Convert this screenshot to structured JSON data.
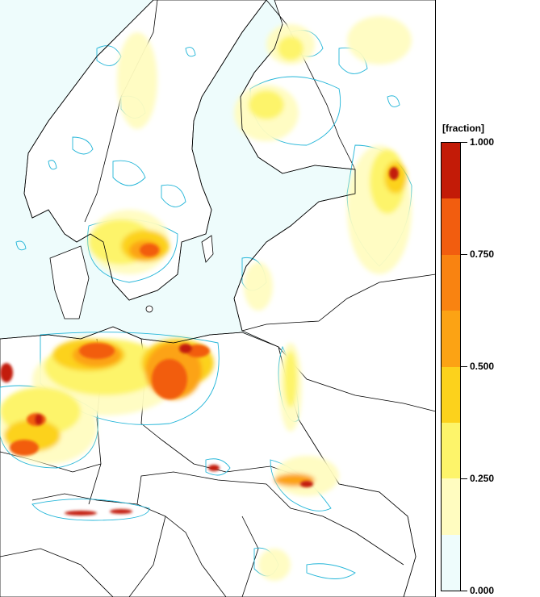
{
  "legend": {
    "title": "[fraction]",
    "ticks": [
      {
        "value": 1.0,
        "label": "1.000"
      },
      {
        "value": 0.75,
        "label": "0.750"
      },
      {
        "value": 0.5,
        "label": "0.500"
      },
      {
        "value": 0.25,
        "label": "0.250"
      },
      {
        "value": 0.0,
        "label": "0.000"
      }
    ],
    "bands": [
      {
        "from": 0.0,
        "to": 0.125,
        "color": "#eefcfc"
      },
      {
        "from": 0.125,
        "to": 0.25,
        "color": "#fffcc0"
      },
      {
        "from": 0.25,
        "to": 0.375,
        "color": "#fdf46a"
      },
      {
        "from": 0.375,
        "to": 0.5,
        "color": "#fcd21c"
      },
      {
        "from": 0.5,
        "to": 0.625,
        "color": "#fca314"
      },
      {
        "from": 0.625,
        "to": 0.75,
        "color": "#f98311"
      },
      {
        "from": 0.75,
        "to": 0.875,
        "color": "#f25d0f"
      },
      {
        "from": 0.875,
        "to": 1.0,
        "color": "#c31b07"
      }
    ]
  },
  "map": {
    "ocean_color": "#eefcfc",
    "land_color": "#ffffff",
    "border_color": "#000000",
    "contour_color": "#22b5d8"
  }
}
